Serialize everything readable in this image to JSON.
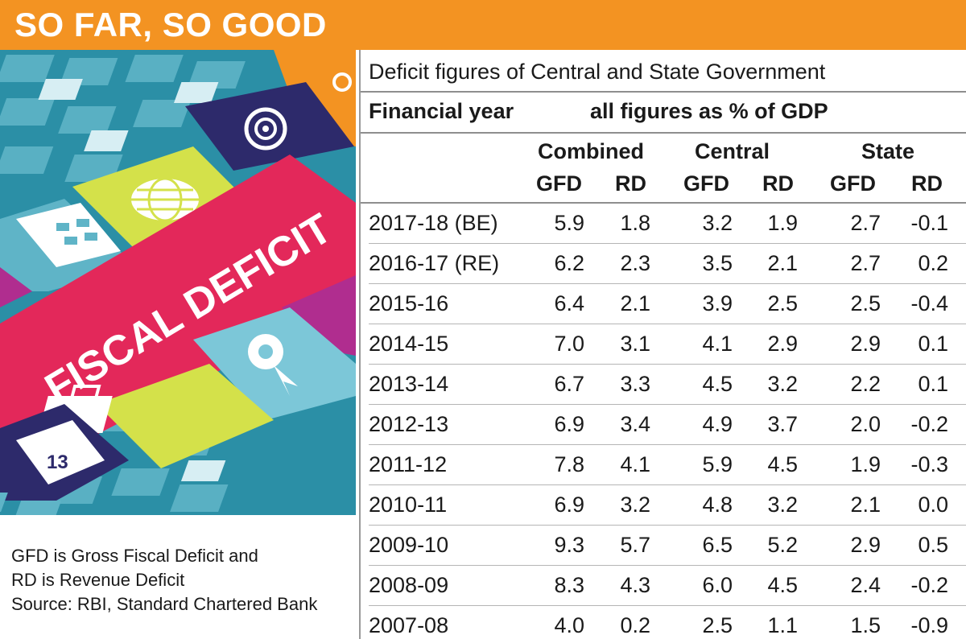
{
  "header": {
    "title": "SO FAR, SO GOOD"
  },
  "illustration": {
    "banner_text": "FISCAL DEFICIT",
    "calendar_text": "13"
  },
  "notes": {
    "line1": "GFD is Gross Fiscal Deficit and",
    "line2": "RD is Revenue Deficit",
    "line3": "Source: RBI, Standard Chartered Bank"
  },
  "colors": {
    "header_bg": "#f39322",
    "banner": "#e3285a",
    "teal": "#2b8fa6",
    "yellow": "#d4e14a",
    "navy": "#2d2a6b",
    "magenta": "#b02d8f"
  },
  "chart_data": {
    "type": "table",
    "title": "Deficit figures of Central and State Government",
    "row_header_label": "Financial year",
    "unit_label": "all figures as % of GDP",
    "groups": [
      "Combined",
      "Central",
      "State"
    ],
    "subcolumns": [
      "GFD",
      "RD",
      "GFD",
      "RD",
      "GFD",
      "RD"
    ],
    "rows": [
      {
        "year": "2017-18 (BE)",
        "values": [
          "5.9",
          "1.8",
          "3.2",
          "1.9",
          "2.7",
          "-0.1"
        ]
      },
      {
        "year": "2016-17 (RE)",
        "values": [
          "6.2",
          "2.3",
          "3.5",
          "2.1",
          "2.7",
          "0.2"
        ]
      },
      {
        "year": "2015-16",
        "values": [
          "6.4",
          "2.1",
          "3.9",
          "2.5",
          "2.5",
          "-0.4"
        ]
      },
      {
        "year": "2014-15",
        "values": [
          "7.0",
          "3.1",
          "4.1",
          "2.9",
          "2.9",
          "0.1"
        ]
      },
      {
        "year": "2013-14",
        "values": [
          "6.7",
          "3.3",
          "4.5",
          "3.2",
          "2.2",
          "0.1"
        ]
      },
      {
        "year": "2012-13",
        "values": [
          "6.9",
          "3.4",
          "4.9",
          "3.7",
          "2.0",
          "-0.2"
        ]
      },
      {
        "year": "2011-12",
        "values": [
          "7.8",
          "4.1",
          "5.9",
          "4.5",
          "1.9",
          "-0.3"
        ]
      },
      {
        "year": "2010-11",
        "values": [
          "6.9",
          "3.2",
          "4.8",
          "3.2",
          "2.1",
          "0.0"
        ]
      },
      {
        "year": "2009-10",
        "values": [
          "9.3",
          "5.7",
          "6.5",
          "5.2",
          "2.9",
          "0.5"
        ]
      },
      {
        "year": "2008-09",
        "values": [
          "8.3",
          "4.3",
          "6.0",
          "4.5",
          "2.4",
          "-0.2"
        ]
      },
      {
        "year": "2007-08",
        "values": [
          "4.0",
          "0.2",
          "2.5",
          "1.1",
          "1.5",
          "-0.9"
        ]
      }
    ]
  }
}
